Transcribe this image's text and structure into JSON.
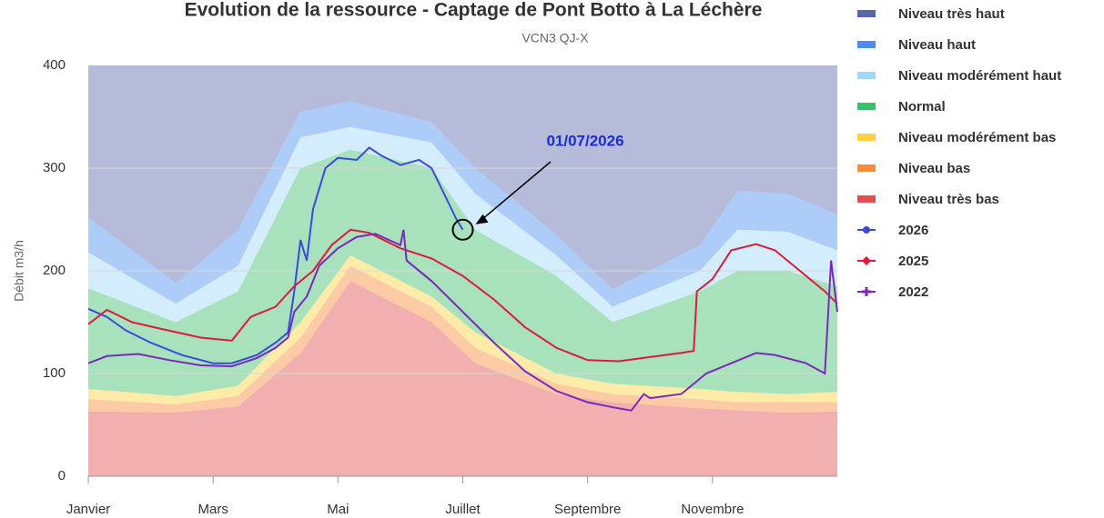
{
  "chart_data": {
    "type": "line",
    "title": "Evolution de la ressource - Captage de Pont Botto à La Léchère",
    "subtitle": "VCN3 QJ-X",
    "y_label": "Débit  m3/h",
    "xlim": [
      0,
      12
    ],
    "xticks": [
      {
        "value": 0,
        "label": "Janvier"
      },
      {
        "value": 2,
        "label": "Mars"
      },
      {
        "value": 4,
        "label": "Mai"
      },
      {
        "value": 6,
        "label": "Juillet"
      },
      {
        "value": 8,
        "label": "Septembre"
      },
      {
        "value": 10,
        "label": "Novembre"
      }
    ],
    "ylim": [
      0,
      400
    ],
    "yticks": [
      0,
      100,
      200,
      300,
      400
    ],
    "grid": true,
    "legend": "right",
    "series": [
      {
        "name": "Niveau très haut",
        "type": "area",
        "color": "#5b68a8",
        "x": [
          0,
          1.4,
          2.4,
          3.4,
          4.2,
          5.5,
          6.2,
          7.5,
          8.4,
          9.8,
          10.4,
          11.2,
          12
        ],
        "values": [
          148,
          212,
          160,
          45,
          35,
          55,
          100,
          165,
          218,
          175,
          122,
          125,
          145
        ]
      },
      {
        "name": "Niveau haut",
        "type": "area",
        "color": "#4a8ef0",
        "x": [
          0,
          1.4,
          2.4,
          3.4,
          4.2,
          5.5,
          6.2,
          7.5,
          8.4,
          9.8,
          10.4,
          11.2,
          12
        ],
        "values": [
          34,
          20,
          35,
          25,
          25,
          20,
          25,
          20,
          17,
          25,
          38,
          37,
          35
        ]
      },
      {
        "name": "Niveau modérément haut",
        "type": "area",
        "color": "#9ed8f8",
        "x": [
          0,
          1.4,
          2.4,
          3.4,
          4.2,
          5.5,
          6.2,
          7.5,
          8.4,
          9.8,
          10.4,
          11.2,
          12
        ],
        "values": [
          35,
          18,
          25,
          30,
          22,
          25,
          35,
          20,
          15,
          20,
          40,
          38,
          35
        ]
      },
      {
        "name": "Normal",
        "type": "area",
        "color": "#3cbf6a",
        "x": [
          0,
          1.4,
          2.4,
          3.4,
          4.2,
          5.5,
          6.2,
          7.5,
          8.4,
          9.8,
          10.4,
          11.2,
          12
        ],
        "values": [
          98,
          72,
          92,
          150,
          103,
          125,
          100,
          95,
          60,
          95,
          118,
          120,
          103
        ]
      },
      {
        "name": "Niveau modérément bas",
        "type": "area",
        "color": "#fdd23c",
        "x": [
          0,
          1.4,
          2.4,
          3.4,
          4.2,
          5.5,
          6.2,
          7.5,
          8.4,
          9.8,
          10.4,
          11.2,
          12
        ],
        "values": [
          10,
          8,
          10,
          15,
          10,
          10,
          15,
          10,
          10,
          10,
          10,
          8,
          10
        ]
      },
      {
        "name": "Niveau bas",
        "type": "area",
        "color": "#fb8a3a",
        "x": [
          0,
          1.4,
          2.4,
          3.4,
          4.2,
          5.5,
          6.2,
          7.5,
          8.4,
          9.8,
          10.4,
          11.2,
          12
        ],
        "values": [
          12,
          8,
          10,
          15,
          15,
          15,
          15,
          10,
          8,
          9,
          8,
          10,
          9
        ]
      },
      {
        "name": "Niveau très bas",
        "type": "area",
        "color": "#e0504e",
        "x": [
          0,
          1.4,
          2.4,
          3.4,
          4.2,
          5.5,
          6.2,
          7.5,
          8.4,
          9.8,
          10.4,
          11.2,
          12
        ],
        "values": [
          63,
          62,
          68,
          120,
          190,
          150,
          110,
          80,
          72,
          66,
          64,
          62,
          63
        ]
      },
      {
        "name": "2026",
        "type": "line",
        "marker": "circle",
        "color": "#3a4adc",
        "x": [
          0,
          0.3,
          0.6,
          1,
          1.5,
          2,
          2.3,
          2.7,
          3,
          3.2,
          3.3,
          3.4,
          3.5,
          3.6,
          3.8,
          4,
          4.3,
          4.5,
          4.7,
          5,
          5.3,
          5.5,
          5.7,
          5.9,
          6.0
        ],
        "values": [
          163,
          155,
          142,
          130,
          118,
          110,
          110,
          118,
          130,
          140,
          180,
          230,
          210,
          260,
          300,
          310,
          308,
          320,
          312,
          303,
          308,
          300,
          275,
          250,
          240
        ]
      },
      {
        "name": "2025",
        "type": "line",
        "marker": "diamond",
        "color": "#dc1c3c",
        "x": [
          0,
          0.3,
          0.7,
          1.2,
          1.8,
          2.3,
          2.6,
          3,
          3.3,
          3.6,
          3.9,
          4.2,
          4.5,
          5,
          5.5,
          6,
          6.5,
          7,
          7.5,
          8,
          8.5,
          9,
          9.5,
          9.7,
          9.75,
          10,
          10.3,
          10.7,
          11,
          11.4,
          11.8,
          12
        ],
        "values": [
          148,
          162,
          150,
          143,
          135,
          132,
          155,
          165,
          185,
          200,
          225,
          240,
          237,
          222,
          212,
          195,
          172,
          145,
          125,
          113,
          112,
          116,
          120,
          122,
          180,
          192,
          220,
          226,
          220,
          200,
          180,
          168
        ]
      },
      {
        "name": "2022",
        "type": "line",
        "marker": "cross",
        "color": "#7a2ab8",
        "x": [
          0,
          0.3,
          0.8,
          1.3,
          1.8,
          2.3,
          2.7,
          3,
          3.2,
          3.3,
          3.5,
          3.7,
          4,
          4.3,
          4.6,
          5,
          5.05,
          5.1,
          5.5,
          6,
          6.5,
          7,
          7.5,
          8,
          8.5,
          8.7,
          8.9,
          9,
          9.5,
          9.9,
          10.3,
          10.7,
          11,
          11.5,
          11.8,
          11.9,
          12
        ],
        "values": [
          110,
          117,
          119,
          113,
          108,
          107,
          115,
          125,
          135,
          160,
          175,
          205,
          222,
          233,
          236,
          225,
          240,
          210,
          190,
          160,
          130,
          102,
          83,
          72,
          66,
          64,
          80,
          76,
          80,
          100,
          110,
          120,
          118,
          110,
          100,
          210,
          160
        ]
      }
    ],
    "annotations": [
      {
        "text": "01/07/2026",
        "x": 6.0,
        "y": 240
      }
    ]
  }
}
